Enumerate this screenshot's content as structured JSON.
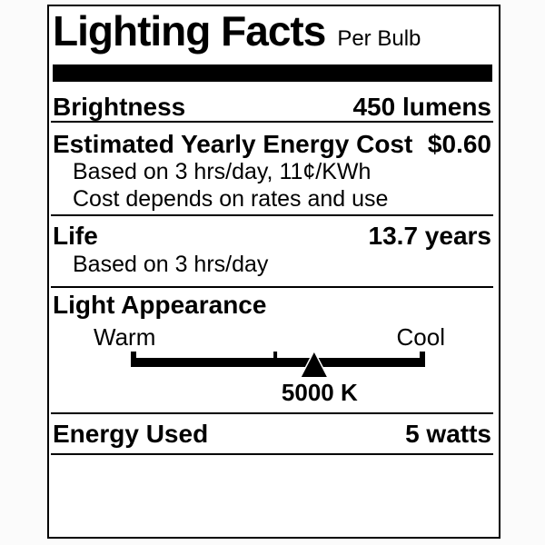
{
  "page": {
    "background": "#fbfbfb"
  },
  "label": {
    "title": "Lighting Facts",
    "subtitle": "Per Bulb",
    "colors": {
      "ink": "#000000",
      "paper": "#ffffff"
    },
    "brightness": {
      "name": "Brightness",
      "value": "450 lumens"
    },
    "energy_cost": {
      "name": "Estimated Yearly Energy Cost",
      "value": "$0.60",
      "note1": "Based on 3 hrs/day, 11¢/KWh",
      "note2": "Cost depends on rates and use"
    },
    "life": {
      "name": "Life",
      "value": "13.7 years",
      "note": "Based on 3 hrs/day"
    },
    "light_appearance": {
      "name": "Light Appearance",
      "warm_label": "Warm",
      "cool_label": "Cool",
      "marker_label": "5000 K",
      "marker_position_pct": 62.3,
      "tick_position_pct": 49.1
    },
    "energy_used": {
      "name": "Energy Used",
      "value": "5 watts"
    }
  }
}
